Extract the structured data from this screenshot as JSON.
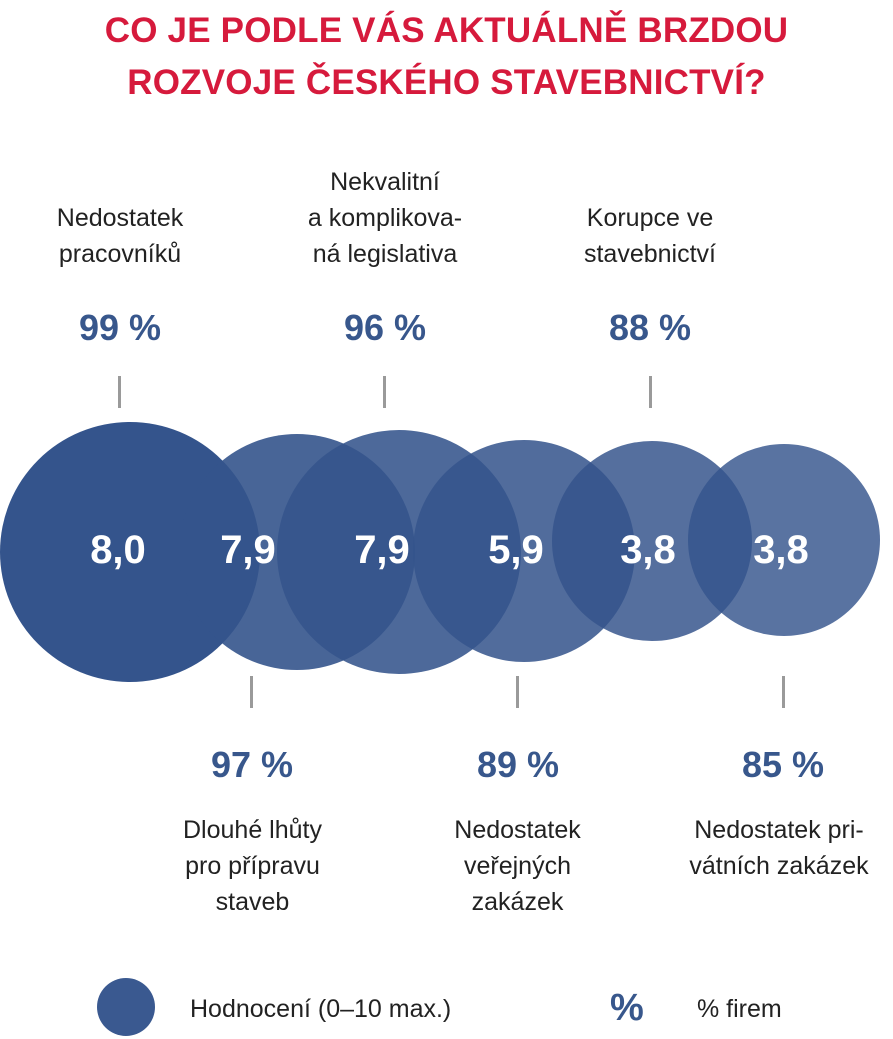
{
  "title_line1": "CO JE PODLE VÁS AKTUÁLNĚ BRZDOU",
  "title_line2": "ROZVOJE ČESKÉHO STAVEBNICTVÍ?",
  "colors": {
    "title": "#d61a3c",
    "accent": "#38578c",
    "bubble": "#3a5990",
    "tick": "#9a9a9a"
  },
  "chart_data": {
    "type": "bubble",
    "items": [
      {
        "label_lines": [
          "Nedostatek",
          "pracovníků"
        ],
        "rating": "8,0",
        "percent": "99 %",
        "rating_value": 8.0,
        "percent_value": 99
      },
      {
        "label_lines": [
          "Dlouhé lhůty",
          "pro přípravu",
          "staveb"
        ],
        "rating": "7,9",
        "percent": "97 %",
        "rating_value": 7.9,
        "percent_value": 97
      },
      {
        "label_lines": [
          "Nekvalitní",
          "a komplikova-",
          "ná legislativa"
        ],
        "rating": "7,9",
        "percent": "96 %",
        "rating_value": 7.9,
        "percent_value": 96
      },
      {
        "label_lines": [
          "Nedostatek",
          "veřejných",
          "zakázek"
        ],
        "rating": "5,9",
        "percent": "89 %",
        "rating_value": 5.9,
        "percent_value": 89
      },
      {
        "label_lines": [
          "Korupce ve",
          "stavebnictví"
        ],
        "rating": "3,8",
        "percent": "88 %",
        "rating_value": 3.8,
        "percent_value": 88
      },
      {
        "label_lines": [
          "Nedostatek pri-",
          "vátních zakázek"
        ],
        "rating": "3,8",
        "percent": "85 %",
        "rating_value": 3.8,
        "percent_value": 85
      }
    ],
    "legend": [
      {
        "symbol": "circle",
        "text": "Hodnocení (0–10 max.)"
      },
      {
        "symbol": "%",
        "text": "% firem"
      }
    ]
  }
}
